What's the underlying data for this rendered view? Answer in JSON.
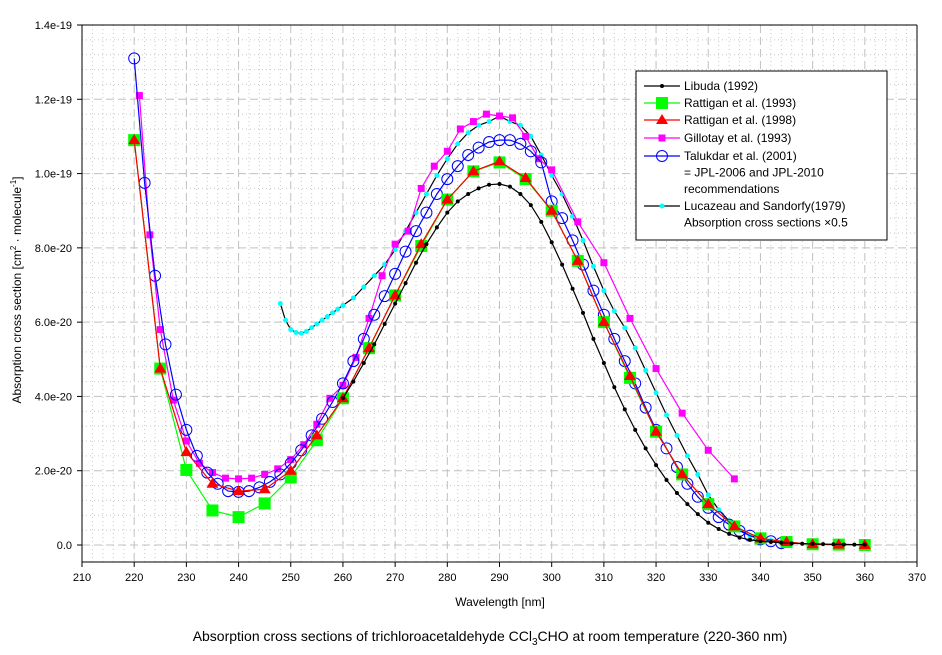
{
  "chart_data": {
    "type": "line",
    "title": "Absorption cross sections of trichloroacetaldehyde CCl",
    "title_subscript": "3",
    "title_suffix": "CHO at room temperature (220-360 nm)",
    "xlabel": "Wavelength [nm]",
    "ylabel_main": "Absorption cross section [cm",
    "ylabel_sup1": "2",
    "ylabel_mid": " · molecule",
    "ylabel_sup2": "-1",
    "ylabel_end": "]",
    "xlim": [
      210,
      370
    ],
    "ylim": [
      0,
      1.4e-19
    ],
    "xticks": [
      210,
      220,
      230,
      240,
      250,
      260,
      270,
      280,
      290,
      300,
      310,
      320,
      330,
      340,
      350,
      360,
      370
    ],
    "xtick_labels": [
      "210",
      "220",
      "230",
      "240",
      "250",
      "260",
      "270",
      "280",
      "290",
      "300",
      "310",
      "320",
      "330",
      "340",
      "350",
      "360",
      "370"
    ],
    "yticks": [
      0,
      2e-20,
      4e-20,
      6e-20,
      8e-20,
      1e-19,
      1.2e-19,
      1.4e-19
    ],
    "ytick_labels": [
      "0.0",
      "2.0e-20",
      "4.0e-20",
      "6.0e-20",
      "8.0e-20",
      "1.0e-19",
      "1.2e-19",
      "1.4e-19"
    ],
    "grid": true,
    "legend_position": "top-right",
    "series": [
      {
        "name": "Libuda (1992)",
        "color": "#000000",
        "marker": "dot",
        "marker_color": "#000000",
        "x": [
          260,
          262,
          264,
          266,
          268,
          270,
          272,
          274,
          276,
          278,
          280,
          282,
          284,
          286,
          288,
          290,
          292,
          294,
          296,
          298,
          300,
          302,
          304,
          306,
          308,
          310,
          312,
          314,
          316,
          318,
          320,
          322,
          324,
          326,
          328,
          330,
          332,
          334,
          336,
          338,
          340,
          342,
          344,
          346,
          348,
          350,
          352,
          354,
          356,
          358,
          360
        ],
        "y": [
          3.95e-20,
          4.4e-20,
          4.9e-20,
          5.4e-20,
          5.95e-20,
          6.5e-20,
          7.05e-20,
          7.6e-20,
          8.1e-20,
          8.55e-20,
          8.95e-20,
          9.25e-20,
          9.45e-20,
          9.6e-20,
          9.7e-20,
          9.72e-20,
          9.65e-20,
          9.45e-20,
          9.15e-20,
          8.7e-20,
          8.15e-20,
          7.55e-20,
          6.9e-20,
          6.25e-20,
          5.55e-20,
          4.9e-20,
          4.25e-20,
          3.65e-20,
          3.1e-20,
          2.6e-20,
          2.15e-20,
          1.75e-20,
          1.4e-20,
          1.1e-20,
          8.3e-21,
          6e-21,
          4.3e-21,
          3e-21,
          2e-21,
          1.4e-21,
          1e-21,
          8e-22,
          6e-22,
          4.5e-22,
          3.5e-22,
          3e-22,
          2.5e-22,
          2e-22,
          1.5e-22,
          1e-22,
          1e-22
        ]
      },
      {
        "name": "Rattigan et al. (1993)",
        "color": "#00ff00",
        "marker": "square",
        "marker_color": "#00ff00",
        "x": [
          220,
          225,
          230,
          235,
          240,
          245,
          250,
          255,
          260,
          265,
          270,
          275,
          280,
          285,
          290,
          295,
          300,
          305,
          310,
          315,
          320,
          325,
          330,
          335,
          340,
          345,
          350,
          355,
          360
        ],
        "y": [
          1.09e-19,
          4.75e-20,
          2.02e-20,
          9.3e-21,
          7.5e-21,
          1.12e-20,
          1.82e-20,
          2.82e-20,
          3.95e-20,
          5.3e-20,
          6.72e-20,
          8.05e-20,
          9.3e-20,
          1.006e-19,
          1.03e-19,
          9.85e-20,
          9e-20,
          7.65e-20,
          6e-20,
          4.5e-20,
          3.05e-20,
          1.9e-20,
          1.1e-20,
          5e-21,
          1.8e-21,
          8e-22,
          2e-22,
          1e-22,
          0
        ]
      },
      {
        "name": "Rattigan et al. (1998)",
        "color": "#ff0000",
        "marker": "triangle",
        "marker_color": "#ff0000",
        "x": [
          220,
          225,
          230,
          235,
          240,
          245,
          250,
          255,
          260,
          265,
          270,
          275,
          280,
          285,
          290,
          295,
          300,
          305,
          310,
          315,
          320,
          325,
          330,
          335,
          340,
          345,
          350,
          355,
          360
        ],
        "y": [
          1.09e-19,
          4.75e-20,
          2.5e-20,
          1.65e-20,
          1.45e-20,
          1.5e-20,
          2e-20,
          2.95e-20,
          3.95e-20,
          5.3e-20,
          6.72e-20,
          8.1e-20,
          9.3e-20,
          1.006e-19,
          1.033e-19,
          9.88e-20,
          9e-20,
          7.65e-20,
          6e-20,
          4.55e-20,
          3.05e-20,
          1.9e-20,
          1.1e-20,
          5e-21,
          1.8e-21,
          8e-22,
          2e-22,
          1e-22,
          0
        ]
      },
      {
        "name": "Gillotay et al. (1993)",
        "color": "#ff00ff",
        "marker": "square-small",
        "marker_color": "#ff00ff",
        "x": [
          221,
          223,
          225,
          227.5,
          230,
          232.5,
          235,
          237.5,
          240,
          242.5,
          245,
          247.5,
          250,
          252.5,
          255,
          257.5,
          260,
          262.5,
          265,
          267.5,
          270,
          272.5,
          275,
          277.5,
          280,
          282.5,
          285,
          287.5,
          290,
          292.5,
          295,
          297.5,
          300,
          305,
          310,
          315,
          320,
          325,
          330,
          335
        ],
        "y": [
          1.21e-19,
          8.35e-20,
          5.8e-20,
          3.9e-20,
          2.8e-20,
          2.2e-20,
          1.95e-20,
          1.8e-20,
          1.78e-20,
          1.8e-20,
          1.9e-20,
          2.05e-20,
          2.3e-20,
          2.7e-20,
          3.25e-20,
          3.95e-20,
          4.3e-20,
          5.05e-20,
          6.1e-20,
          7.25e-20,
          8.1e-20,
          8.45e-20,
          9.6e-20,
          1.02e-19,
          1.06e-19,
          1.12e-19,
          1.14e-19,
          1.16e-19,
          1.155e-19,
          1.15e-19,
          1.1e-19,
          1.04e-19,
          1.01e-19,
          8.7e-20,
          7.6e-20,
          6.1e-20,
          4.75e-20,
          3.55e-20,
          2.55e-20,
          1.78e-20
        ]
      },
      {
        "name": "Talukdar et al. (2001) = JPL-2006 and JPL-2010 recommendations",
        "legend_lines": [
          "Talukdar et al. (2001)",
          "= JPL-2006 and JPL-2010",
          "recommendations"
        ],
        "color": "#0000ff",
        "marker": "circle-open",
        "marker_color": "#0000ff",
        "x": [
          220,
          222,
          224,
          226,
          228,
          230,
          232,
          234,
          236,
          238,
          240,
          242,
          244,
          246,
          248,
          250,
          252,
          254,
          256,
          258,
          260,
          262,
          264,
          266,
          268,
          270,
          272,
          274,
          276,
          278,
          280,
          282,
          284,
          286,
          288,
          290,
          292,
          294,
          296,
          298,
          300,
          302,
          304,
          306,
          308,
          310,
          312,
          314,
          316,
          318,
          320,
          322,
          324,
          326,
          328,
          330,
          332,
          334,
          336,
          338,
          340,
          342,
          344
        ],
        "y": [
          1.31e-19,
          9.75e-20,
          7.25e-20,
          5.4e-20,
          4.05e-20,
          3.1e-20,
          2.4e-20,
          1.95e-20,
          1.65e-20,
          1.45e-20,
          1.43e-20,
          1.45e-20,
          1.55e-20,
          1.7e-20,
          1.9e-20,
          2.2e-20,
          2.55e-20,
          2.95e-20,
          3.4e-20,
          3.85e-20,
          4.35e-20,
          4.95e-20,
          5.55e-20,
          6.2e-20,
          6.7e-20,
          7.3e-20,
          7.9e-20,
          8.45e-20,
          8.95e-20,
          9.45e-20,
          9.85e-20,
          1.02e-19,
          1.05e-19,
          1.07e-19,
          1.085e-19,
          1.09e-19,
          1.09e-19,
          1.08e-19,
          1.06e-19,
          1.03e-19,
          9.25e-20,
          8.8e-20,
          8.2e-20,
          7.55e-20,
          6.85e-20,
          6.2e-20,
          5.55e-20,
          4.95e-20,
          4.35e-20,
          3.7e-20,
          3.1e-20,
          2.6e-20,
          2.1e-20,
          1.65e-20,
          1.3e-20,
          1e-20,
          7.5e-21,
          5.5e-21,
          3.8e-21,
          2.5e-21,
          1.5e-21,
          1e-21,
          5e-22
        ]
      },
      {
        "name": "Lucazeau and Sandorfy(1979) Absorption cross sections ×0.5",
        "legend_lines": [
          "Lucazeau and Sandorfy(1979)",
          "Absorption cross sections ×0.5"
        ],
        "color": "#000000",
        "marker": "dot",
        "marker_color": "#00ffff",
        "x": [
          248,
          249,
          250,
          251,
          252,
          253,
          254,
          255,
          256,
          257,
          258,
          259,
          260,
          262,
          264,
          266,
          268,
          270,
          272,
          274,
          276,
          278,
          280,
          282,
          284,
          286,
          288,
          290,
          292,
          294,
          296,
          298,
          300,
          302,
          304,
          306,
          308,
          310,
          312,
          314,
          316,
          318,
          320,
          322,
          324,
          326,
          328,
          330,
          332,
          334,
          336,
          338,
          340,
          342,
          344
        ],
        "y": [
          6.5e-20,
          6.05e-20,
          5.8e-20,
          5.72e-20,
          5.7e-20,
          5.75e-20,
          5.85e-20,
          5.95e-20,
          6.05e-20,
          6.15e-20,
          6.25e-20,
          6.35e-20,
          6.45e-20,
          6.65e-20,
          6.95e-20,
          7.25e-20,
          7.55e-20,
          7.95e-20,
          8.45e-20,
          8.95e-20,
          9.45e-20,
          9.95e-20,
          1.04e-19,
          1.08e-19,
          1.11e-19,
          1.13e-19,
          1.14e-19,
          1.155e-19,
          1.14e-19,
          1.13e-19,
          1.1e-19,
          1.05e-19,
          9.95e-20,
          9.45e-20,
          8.85e-20,
          8.2e-20,
          7.5e-20,
          6.85e-20,
          6.3e-20,
          5.85e-20,
          5.3e-20,
          4.7e-20,
          4.1e-20,
          3.5e-20,
          2.95e-20,
          2.4e-20,
          1.9e-20,
          1.35e-20,
          9.5e-21,
          6.5e-21,
          4e-21,
          2.5e-21,
          1.8e-21,
          1.2e-21,
          8e-22
        ]
      }
    ]
  }
}
